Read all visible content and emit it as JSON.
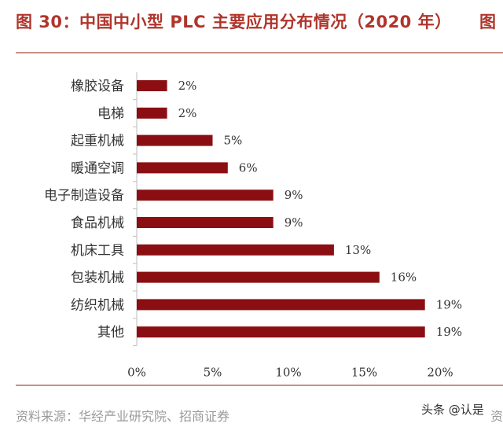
{
  "figure": {
    "title": "图 30：中国中小型 PLC 主要应用分布情况（2020 年）",
    "title_cut_right": "图",
    "source": "资料来源：华经产业研究院、招商证券",
    "source_cut_right": "资",
    "watermark": "头条 @认是"
  },
  "colors": {
    "title": "#b0352c",
    "bar": "#8b0f12",
    "rule": "#c99085"
  },
  "chart_data": {
    "type": "bar",
    "orientation": "horizontal",
    "title": "",
    "xlabel": "",
    "ylabel": "",
    "xlim": [
      0,
      20
    ],
    "x_ticks": [
      "0%",
      "5%",
      "10%",
      "15%",
      "20%"
    ],
    "grid": false,
    "legend": "none",
    "categories": [
      "橡胶设备",
      "电梯",
      "起重机械",
      "暖通空调",
      "电子制造设备",
      "食品机械",
      "机床工具",
      "包装机械",
      "纺织机械",
      "其他"
    ],
    "values": [
      2,
      2,
      5,
      6,
      9,
      9,
      13,
      16,
      19,
      19
    ],
    "value_labels": [
      "2%",
      "2%",
      "5%",
      "6%",
      "9%",
      "9%",
      "13%",
      "16%",
      "19%",
      "19%"
    ],
    "unit": "%"
  }
}
